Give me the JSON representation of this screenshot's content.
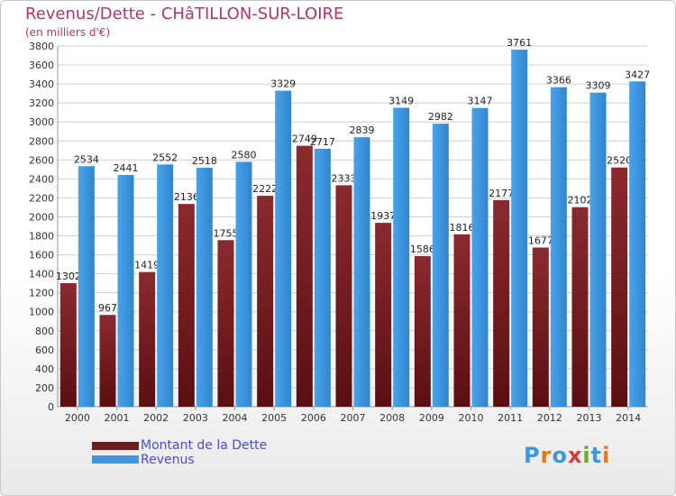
{
  "title": "Revenus/Dette - CHâTILLON-SUR-LOIRE",
  "subtitle": "(en milliers d'€)",
  "logo": {
    "text": "Proxiti"
  },
  "colors": {
    "dette": "#7a1f24",
    "revenus": "#3f97df",
    "grid": "#cfcfcf",
    "title": "#b0356a"
  },
  "legend": [
    {
      "label": "Montant de la Dette",
      "color": "#6a1d1d"
    },
    {
      "label": "Revenus",
      "color": "#3f97df"
    }
  ],
  "chart_data": {
    "type": "bar",
    "title": "Revenus/Dette - CHâTILLON-SUR-LOIRE",
    "ylabel": "(en milliers d'€)",
    "xlabel": "",
    "ylim": [
      0,
      3800
    ],
    "ytick_step": 200,
    "grid": true,
    "legend_position": "bottom-left",
    "categories": [
      "2000",
      "2001",
      "2002",
      "2003",
      "2004",
      "2005",
      "2006",
      "2007",
      "2008",
      "2009",
      "2010",
      "2011",
      "2012",
      "2013",
      "2014"
    ],
    "series": [
      {
        "name": "Montant de la Dette",
        "values": [
          1302,
          967,
          1419,
          2136,
          1755,
          2222,
          2749,
          2333,
          1937,
          1586,
          1816,
          2177,
          1677,
          2102,
          2520
        ]
      },
      {
        "name": "Revenus",
        "values": [
          2534,
          2441,
          2552,
          2518,
          2580,
          3329,
          2717,
          2839,
          3149,
          2982,
          3147,
          3761,
          3366,
          3309,
          3427
        ]
      }
    ]
  }
}
